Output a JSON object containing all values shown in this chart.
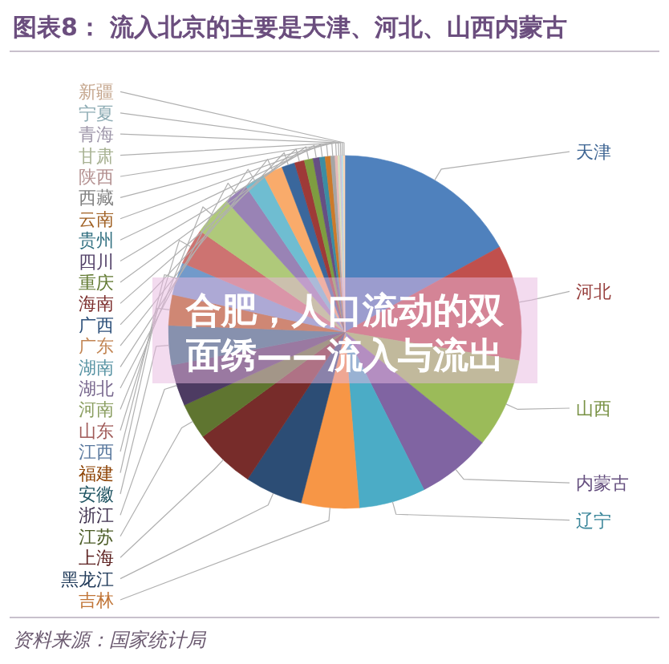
{
  "chart_data": {
    "type": "pie",
    "title": "图表8：  流入北京的主要是天津、河北、山西内蒙古",
    "categories": [
      "天津",
      "河北",
      "山西",
      "内蒙古",
      "辽宁",
      "吉林",
      "黑龙江",
      "上海",
      "江苏",
      "浙江",
      "安徽",
      "福建",
      "江西",
      "山东",
      "河南",
      "湖北",
      "湖南",
      "广东",
      "广西",
      "海南",
      "重庆",
      "四川",
      "贵州",
      "云南",
      "西藏",
      "陕西",
      "甘肃",
      "青海",
      "宁夏",
      "新疆"
    ],
    "values": [
      17.0,
      10.6,
      8.2,
      6.8,
      6.1,
      5.3,
      5.3,
      5.6,
      3.3,
      3.8,
      3.6,
      2.8,
      3.0,
      3.3,
      3.6,
      2.2,
      1.9,
      1.8,
      1.2,
      0.9,
      0.8,
      0.6,
      0.5,
      0.5,
      0.4,
      0.25,
      0.2,
      0.15,
      0.15,
      0.15
    ],
    "colors": [
      "#4f81bd",
      "#c0504d",
      "#9bbb59",
      "#8064a2",
      "#4bacc6",
      "#f79646",
      "#2c4d75",
      "#772c2a",
      "#5f7530",
      "#4d3b62",
      "#276a7c",
      "#b65708",
      "#729aca",
      "#cd7371",
      "#afc97a",
      "#9983b5",
      "#6fbdd1",
      "#f9ab6b",
      "#3a679c",
      "#9e3a38",
      "#7e9d40",
      "#664f83",
      "#3c8da3",
      "#cc7a2a",
      "#a5a5a5",
      "#e6b9b8",
      "#d7e4bd",
      "#ccc1da",
      "#b7dee8",
      "#fcd5b5"
    ],
    "annotations": [
      "合肥，人口流动的双面绣——流入与流出",
      "资料来源：国家统计局"
    ]
  }
}
